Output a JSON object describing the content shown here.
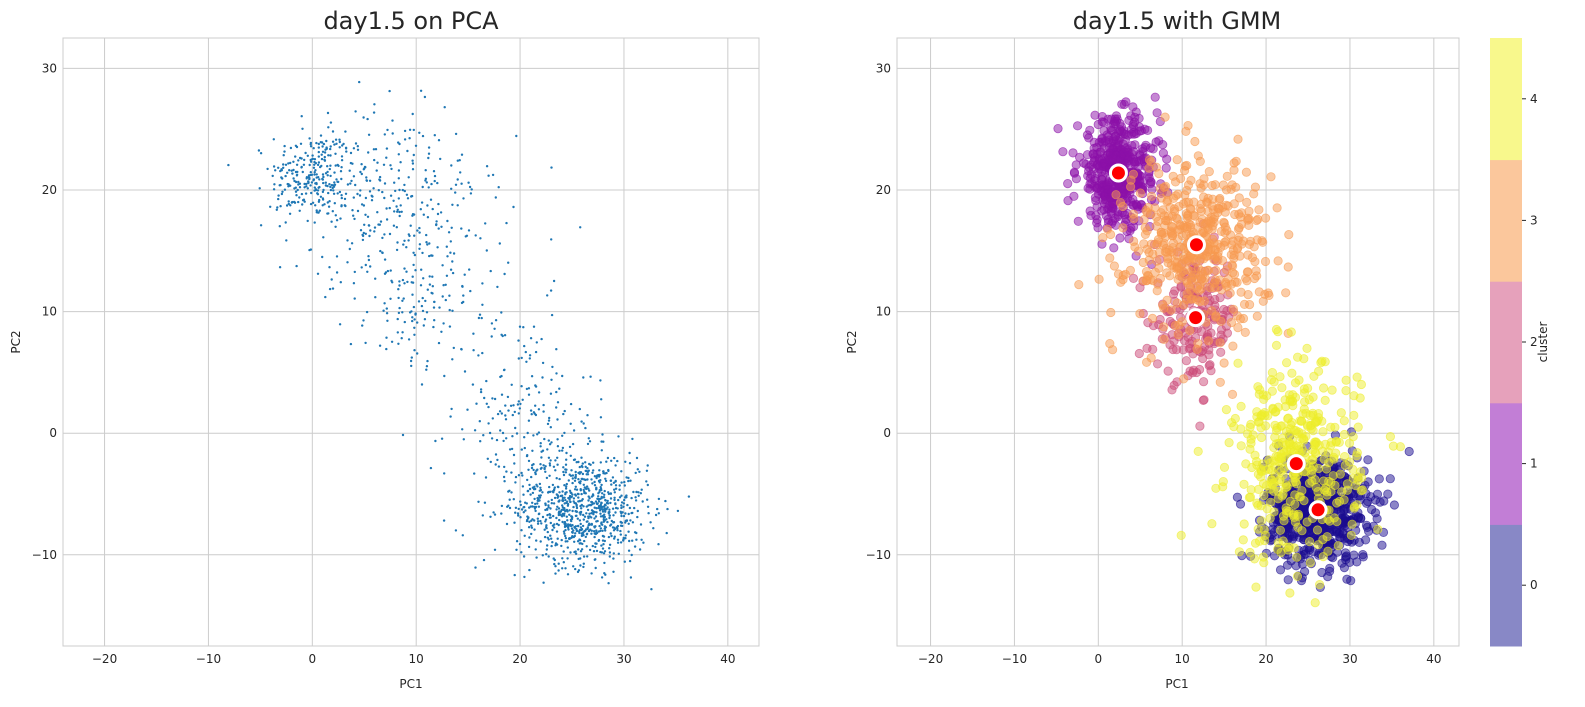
{
  "chart_data": [
    {
      "type": "scatter",
      "title": "day1.5 on PCA",
      "xlabel": "PC1",
      "ylabel": "PC2",
      "xlim": [
        -24,
        43
      ],
      "ylim": [
        -17.5,
        32.5
      ],
      "xticks": [
        -20,
        -10,
        0,
        10,
        20,
        30,
        40
      ],
      "yticks": [
        -10,
        0,
        10,
        20,
        30
      ],
      "grid": true,
      "marker": {
        "color": "#1f77b4",
        "size": "small"
      },
      "point_groups": [
        {
          "center": [
            0,
            21.2
          ],
          "spread": [
            2.0,
            1.8
          ],
          "count": 230
        },
        {
          "center": [
            5,
            20
          ],
          "spread": [
            4,
            3.5
          ],
          "count": 210
        },
        {
          "center": [
            11,
            16.5
          ],
          "spread": [
            4,
            4
          ],
          "count": 170
        },
        {
          "center": [
            10,
            9.5
          ],
          "spread": [
            2.5,
            2.5
          ],
          "count": 90
        },
        {
          "center": [
            20,
            1.5
          ],
          "spread": [
            3.5,
            4.5
          ],
          "count": 210
        },
        {
          "center": [
            26,
            -6.2
          ],
          "spread": [
            3.2,
            2.3
          ],
          "count": 880
        }
      ]
    },
    {
      "type": "scatter",
      "title": "day1.5 with GMM",
      "xlabel": "PC1",
      "ylabel": "PC2",
      "xlim": [
        -24,
        43
      ],
      "ylim": [
        -17.5,
        32.5
      ],
      "xticks": [
        -20,
        -10,
        0,
        10,
        20,
        30,
        40
      ],
      "yticks": [
        -10,
        0,
        10,
        20,
        30
      ],
      "grid": true,
      "colorbar": {
        "label": "cluster",
        "ticks": [
          0,
          1,
          2,
          3,
          4
        ],
        "colors": [
          "#8888c6",
          "#c27ed6",
          "#e6a1bb",
          "#fbc79c",
          "#f8f88c"
        ],
        "placement": "right"
      },
      "clusters": [
        {
          "id": 0,
          "color": "#1a0b8f",
          "center": [
            26.2,
            -6.3
          ],
          "spread": [
            3.0,
            2.2
          ],
          "count": 700
        },
        {
          "id": 1,
          "color": "#8b10a8",
          "center": [
            2.4,
            21.4
          ],
          "spread": [
            2.4,
            2.2
          ],
          "count": 480
        },
        {
          "id": 2,
          "color": "#cc4a78",
          "center": [
            11.6,
            9.5
          ],
          "spread": [
            2.5,
            2.6
          ],
          "count": 190
        },
        {
          "id": 3,
          "color": "#f79a4f",
          "center": [
            11.7,
            15.5
          ],
          "spread": [
            4.2,
            3.5
          ],
          "count": 470
        },
        {
          "id": 4,
          "color": "#eded2a",
          "center": [
            23.6,
            -2.5
          ],
          "spread": [
            3.8,
            4.0
          ],
          "count": 400
        }
      ],
      "centers": [
        [
          2.4,
          21.4
        ],
        [
          11.7,
          15.5
        ],
        [
          11.6,
          9.5
        ],
        [
          23.6,
          -2.5
        ],
        [
          26.2,
          -6.3
        ]
      ],
      "center_marker": {
        "fill": "#ff0000",
        "edge": "#ffffff"
      }
    }
  ]
}
